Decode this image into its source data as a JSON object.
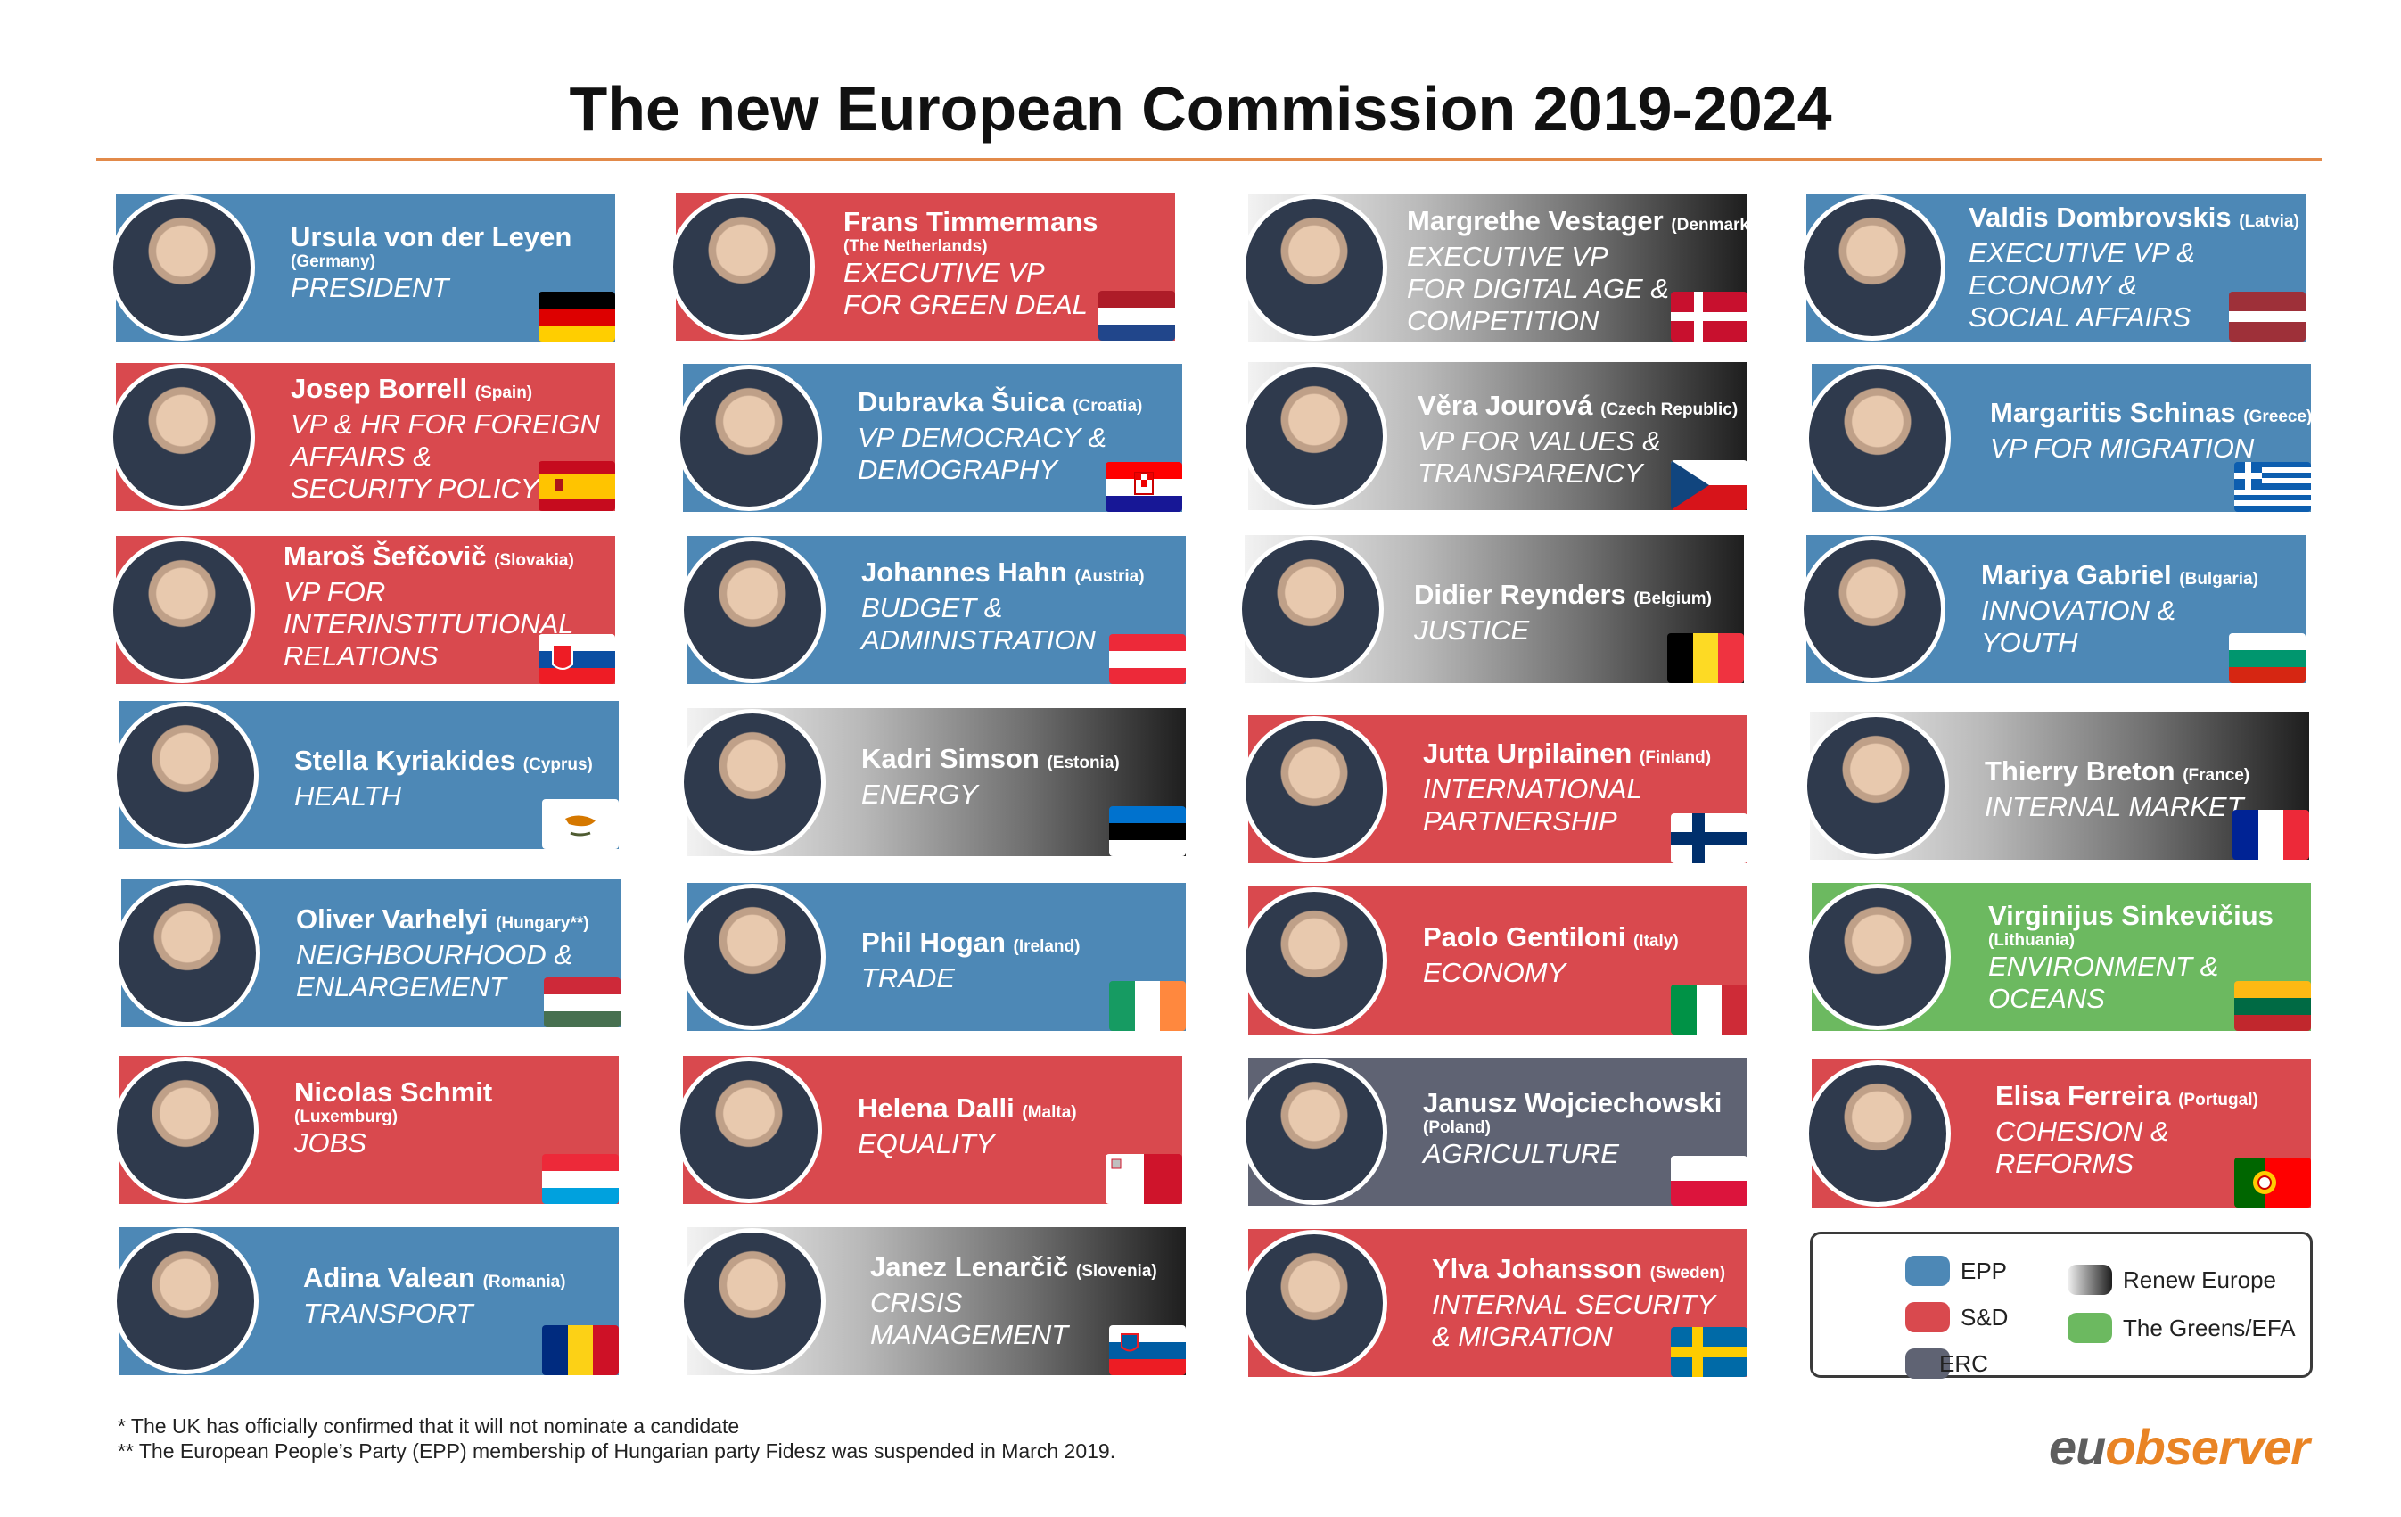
{
  "title": "The new European Commission 2019-2024",
  "cards": [
    {
      "name": "Ursula von der Leyen",
      "country": "(Germany)",
      "country_inline": false,
      "role_lines": [
        "PRESIDENT"
      ],
      "party": "EPP"
    },
    {
      "name": "Josep Borrell",
      "country": "(Spain)",
      "country_inline": true,
      "role_lines": [
        "VP & HR FOR FOREIGN",
        "AFFAIRS &",
        "SECURITY POLICY"
      ],
      "party": "S&D"
    },
    {
      "name": "Maroš Šefčovič",
      "country": "(Slovakia)",
      "country_inline": true,
      "role_lines": [
        "VP FOR",
        "INTERINSTITUTIONAL",
        "RELATIONS"
      ],
      "party": "S&D"
    },
    {
      "name": "Stella Kyriakides",
      "country": "(Cyprus)",
      "country_inline": true,
      "role_lines": [
        "HEALTH"
      ],
      "party": "EPP"
    },
    {
      "name": "Oliver Varhelyi",
      "country": "(Hungary**)",
      "country_inline": true,
      "role_lines": [
        "NEIGHBOURHOOD &",
        "ENLARGEMENT"
      ],
      "party": "EPP"
    },
    {
      "name": "Nicolas Schmit",
      "country": "(Luxemburg)",
      "country_inline": false,
      "role_lines": [
        "JOBS"
      ],
      "party": "S&D"
    },
    {
      "name": "Adina Valean",
      "country": "(Romania)",
      "country_inline": true,
      "role_lines": [
        "TRANSPORT"
      ],
      "party": "EPP"
    },
    {
      "name": "Frans Timmermans",
      "country": "(The Netherlands)",
      "country_inline": false,
      "role_lines": [
        "EXECUTIVE VP",
        "FOR GREEN DEAL"
      ],
      "party": "S&D"
    },
    {
      "name": "Dubravka Šuica",
      "country": "(Croatia)",
      "country_inline": true,
      "role_lines": [
        "VP DEMOCRACY &",
        "DEMOGRAPHY"
      ],
      "party": "EPP"
    },
    {
      "name": "Johannes Hahn",
      "country": "(Austria)",
      "country_inline": true,
      "role_lines": [
        "BUDGET &",
        "ADMINISTRATION"
      ],
      "party": "EPP"
    },
    {
      "name": "Kadri Simson",
      "country": "(Estonia)",
      "country_inline": true,
      "role_lines": [
        "ENERGY"
      ],
      "party": "Renew Europe"
    },
    {
      "name": "Phil Hogan",
      "country": "(Ireland)",
      "country_inline": true,
      "role_lines": [
        "TRADE"
      ],
      "party": "EPP"
    },
    {
      "name": "Helena Dalli",
      "country": "(Malta)",
      "country_inline": true,
      "role_lines": [
        "EQUALITY"
      ],
      "party": "S&D"
    },
    {
      "name": "Janez Lenarčič",
      "country": "(Slovenia)",
      "country_inline": true,
      "role_lines": [
        "CRISIS",
        "MANAGEMENT"
      ],
      "party": "Renew Europe"
    },
    {
      "name": "Margrethe Vestager",
      "country": "(Denmark)",
      "country_inline": true,
      "role_lines": [
        "EXECUTIVE VP",
        "FOR DIGITAL AGE &",
        "COMPETITION"
      ],
      "party": "Renew Europe"
    },
    {
      "name": "Věra Jourová",
      "country": "(Czech Republic)",
      "country_inline": true,
      "role_lines": [
        "VP FOR VALUES &",
        "TRANSPARENCY"
      ],
      "party": "Renew Europe"
    },
    {
      "name": "Didier Reynders",
      "country": "(Belgium)",
      "country_inline": true,
      "role_lines": [
        "JUSTICE"
      ],
      "party": "Renew Europe"
    },
    {
      "name": "Jutta Urpilainen",
      "country": "(Finland)",
      "country_inline": true,
      "role_lines": [
        "INTERNATIONAL",
        "PARTNERSHIP"
      ],
      "party": "S&D"
    },
    {
      "name": "Paolo Gentiloni",
      "country": "(Italy)",
      "country_inline": true,
      "role_lines": [
        "ECONOMY"
      ],
      "party": "S&D"
    },
    {
      "name": "Janusz Wojciechowski",
      "country": "(Poland)",
      "country_inline": false,
      "role_lines": [
        "AGRICULTURE"
      ],
      "party": "ERC"
    },
    {
      "name": "Ylva Johansson",
      "country": "(Sweden)",
      "country_inline": true,
      "role_lines": [
        "INTERNAL SECURITY",
        "& MIGRATION"
      ],
      "party": "S&D"
    },
    {
      "name": "Valdis Dombrovskis",
      "country": "(Latvia)",
      "country_inline": true,
      "role_lines": [
        "EXECUTIVE VP &",
        "ECONOMY &",
        "SOCIAL AFFAIRS"
      ],
      "party": "EPP"
    },
    {
      "name": "Margaritis Schinas",
      "country": "(Greece)",
      "country_inline": true,
      "role_lines": [
        "VP FOR MIGRATION"
      ],
      "party": "EPP"
    },
    {
      "name": "Mariya Gabriel",
      "country": "(Bulgaria)",
      "country_inline": true,
      "role_lines": [
        "INNOVATION &",
        "YOUTH"
      ],
      "party": "EPP"
    },
    {
      "name": "Thierry Breton",
      "country": "(France)",
      "country_inline": true,
      "role_lines": [
        "INTERNAL MARKET"
      ],
      "party": "Renew Europe"
    },
    {
      "name": "Virginijus Sinkevičius",
      "country": "(Lithuania)",
      "country_inline": false,
      "role_lines": [
        "ENVIRONMENT &",
        "OCEANS"
      ],
      "party": "The Greens/EFA"
    },
    {
      "name": "Elisa Ferreira",
      "country": "(Portugal)",
      "country_inline": true,
      "role_lines": [
        "COHESION &",
        "REFORMS"
      ],
      "party": "S&D"
    }
  ],
  "legend": [
    {
      "label": "EPP",
      "color": "#4d88b6"
    },
    {
      "label": "S&D",
      "color": "#d9494e"
    },
    {
      "label": "ERC",
      "color": "#5f6373"
    },
    {
      "label": "Renew Europe",
      "color": "gradient-white-to-black"
    },
    {
      "label": "The Greens/EFA",
      "color": "#6cb960"
    }
  ],
  "footnotes": [
    "* The UK has officially confirmed that it will not nominate a candidate",
    "** The European People’s Party (EPP) membership of Hungarian party Fidesz was suspended in March 2019."
  ],
  "logo": {
    "part1": "eu",
    "part2": "observer"
  }
}
